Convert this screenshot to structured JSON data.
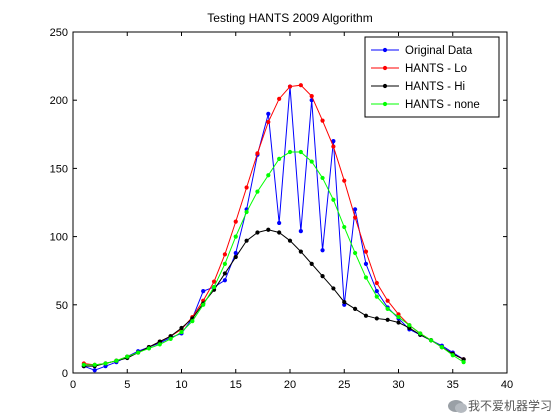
{
  "chart_data": {
    "type": "line",
    "title": "Testing HANTS 2009 Algorithm",
    "xlabel": "",
    "ylabel": "",
    "xlim": [
      0,
      40
    ],
    "ylim": [
      0,
      250
    ],
    "xticks": [
      0,
      5,
      10,
      15,
      20,
      25,
      30,
      35,
      40
    ],
    "yticks": [
      0,
      50,
      100,
      150,
      200,
      250
    ],
    "grid": false,
    "legend_position": "top-right",
    "series": [
      {
        "name": "Original Data",
        "color": "#0000ff",
        "marker": "dot",
        "x": [
          1,
          2,
          3,
          4,
          5,
          6,
          7,
          8,
          9,
          10,
          11,
          12,
          13,
          14,
          15,
          16,
          17,
          18,
          19,
          20,
          21,
          22,
          23,
          24,
          25,
          26,
          27,
          28,
          29,
          30,
          31,
          32,
          33,
          34,
          35,
          36
        ],
        "y": [
          5,
          2,
          5,
          8,
          12,
          16,
          19,
          22,
          26,
          29,
          40,
          60,
          63,
          68,
          88,
          120,
          160,
          190,
          110,
          210,
          104,
          200,
          90,
          170,
          50,
          120,
          80,
          60,
          48,
          40,
          32,
          28,
          24,
          20,
          15,
          10
        ]
      },
      {
        "name": "HANTS - Lo",
        "color": "#ff0000",
        "marker": "dot",
        "x": [
          1,
          2,
          3,
          4,
          5,
          6,
          7,
          8,
          9,
          10,
          11,
          12,
          13,
          14,
          15,
          16,
          17,
          18,
          19,
          20,
          21,
          22,
          23,
          24,
          25,
          26,
          27,
          28,
          29,
          30,
          31,
          32,
          33,
          34,
          35,
          36
        ],
        "y": [
          7,
          6,
          7,
          9,
          12,
          15,
          19,
          23,
          27,
          32,
          41,
          53,
          67,
          87,
          111,
          136,
          161,
          184,
          201,
          210,
          211,
          203,
          185,
          166,
          141,
          114,
          89,
          66,
          53,
          43,
          35,
          29,
          24,
          19,
          14,
          10
        ]
      },
      {
        "name": "HANTS - Hi",
        "color": "#000000",
        "marker": "dot",
        "x": [
          1,
          2,
          3,
          4,
          5,
          6,
          7,
          8,
          9,
          10,
          11,
          12,
          13,
          14,
          15,
          16,
          17,
          18,
          19,
          20,
          21,
          22,
          23,
          24,
          25,
          26,
          27,
          28,
          29,
          30,
          31,
          32,
          33,
          34,
          35,
          36
        ],
        "y": [
          5,
          5,
          7,
          9,
          11,
          15,
          19,
          23,
          27,
          33,
          40,
          51,
          61,
          73,
          85,
          97,
          103,
          105,
          103,
          97,
          89,
          80,
          71,
          62,
          52,
          47,
          42,
          40,
          39,
          37,
          33,
          28,
          24,
          19,
          14,
          10
        ]
      },
      {
        "name": "HANTS - none",
        "color": "#00ff00",
        "marker": "dot",
        "x": [
          1,
          2,
          3,
          4,
          5,
          6,
          7,
          8,
          9,
          10,
          11,
          12,
          13,
          14,
          15,
          16,
          17,
          18,
          19,
          20,
          21,
          22,
          23,
          24,
          25,
          26,
          27,
          28,
          29,
          30,
          31,
          32,
          33,
          34,
          35,
          36
        ],
        "y": [
          6,
          6,
          7,
          9,
          12,
          15,
          18,
          21,
          25,
          30,
          38,
          50,
          63,
          80,
          100,
          118,
          133,
          145,
          157,
          162,
          162,
          155,
          143,
          127,
          107,
          88,
          70,
          56,
          47,
          41,
          35,
          29,
          24,
          19,
          13,
          8
        ]
      }
    ]
  },
  "watermark": {
    "text": "我不爱机器学习"
  }
}
